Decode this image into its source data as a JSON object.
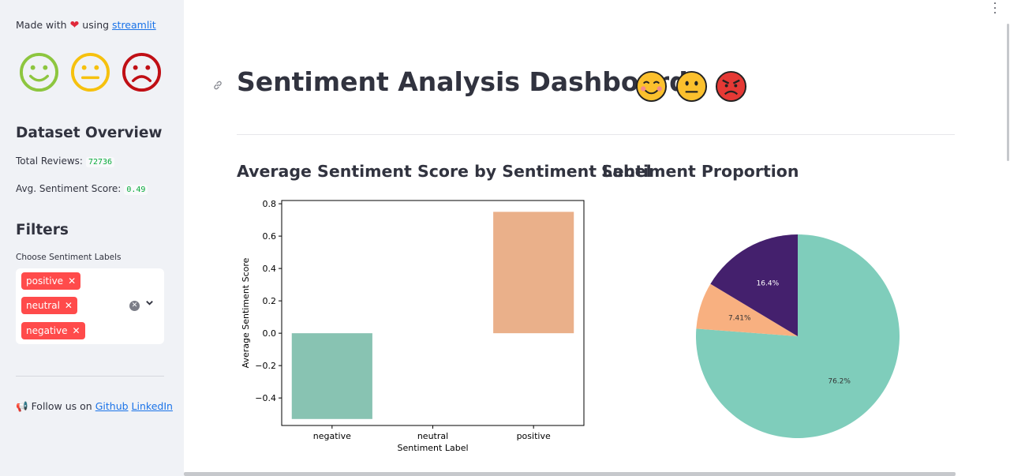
{
  "sidebar": {
    "made_prefix": "Made with",
    "made_using": "using",
    "made_link": "streamlit",
    "faces": [
      "happy-face-icon",
      "neutral-face-icon",
      "sad-face-icon"
    ],
    "dataset_heading": "Dataset Overview",
    "total_reviews_label": "Total Reviews:",
    "total_reviews_value": "72736",
    "avg_score_label": "Avg. Sentiment Score:",
    "avg_score_value": "0.49",
    "filters_heading": "Filters",
    "filter_label": "Choose Sentiment Labels",
    "selected_tags": [
      "positive",
      "neutral",
      "negative"
    ],
    "follow_prefix": "Follow us on",
    "github_link": "Github",
    "linkedin_link": "LinkedIn"
  },
  "main": {
    "title": "Sentiment Analysis Dashboard",
    "title_emojis": [
      "smiling-face-icon",
      "neutral-face-icon",
      "angry-face-icon"
    ],
    "bar_heading": "Average Sentiment Score by Sentiment Label",
    "pie_heading": "Sentiment Proportion"
  },
  "colors": {
    "accent": "#ff4b4b",
    "negative": "#88c3b2",
    "positive": "#eab08a",
    "pie_teal": "#7fcdbb",
    "pie_orange": "#f8b080",
    "pie_purple": "#44206d"
  },
  "chart_data": [
    {
      "type": "bar",
      "categories": [
        "negative",
        "neutral",
        "positive"
      ],
      "values": [
        -0.53,
        0.0,
        0.75
      ],
      "xlabel": "Sentiment Label",
      "ylabel": "Average Sentiment Score",
      "ylim": [
        -0.57,
        0.82
      ],
      "yticks": [
        "0.8",
        "0.6",
        "0.4",
        "0.2",
        "0.0",
        "−0.2",
        "−0.4"
      ],
      "ytick_values": [
        0.8,
        0.6,
        0.4,
        0.2,
        0.0,
        -0.2,
        -0.4
      ],
      "colors": [
        "#88c3b2",
        "#88c3b2",
        "#eab08a"
      ]
    },
    {
      "type": "pie",
      "slices": [
        {
          "label": "76.2%",
          "value": 76.2,
          "color": "#7fcdbb"
        },
        {
          "label": "7.41%",
          "value": 7.41,
          "color": "#f8b080"
        },
        {
          "label": "16.4%",
          "value": 16.4,
          "color": "#44206d"
        }
      ]
    }
  ]
}
